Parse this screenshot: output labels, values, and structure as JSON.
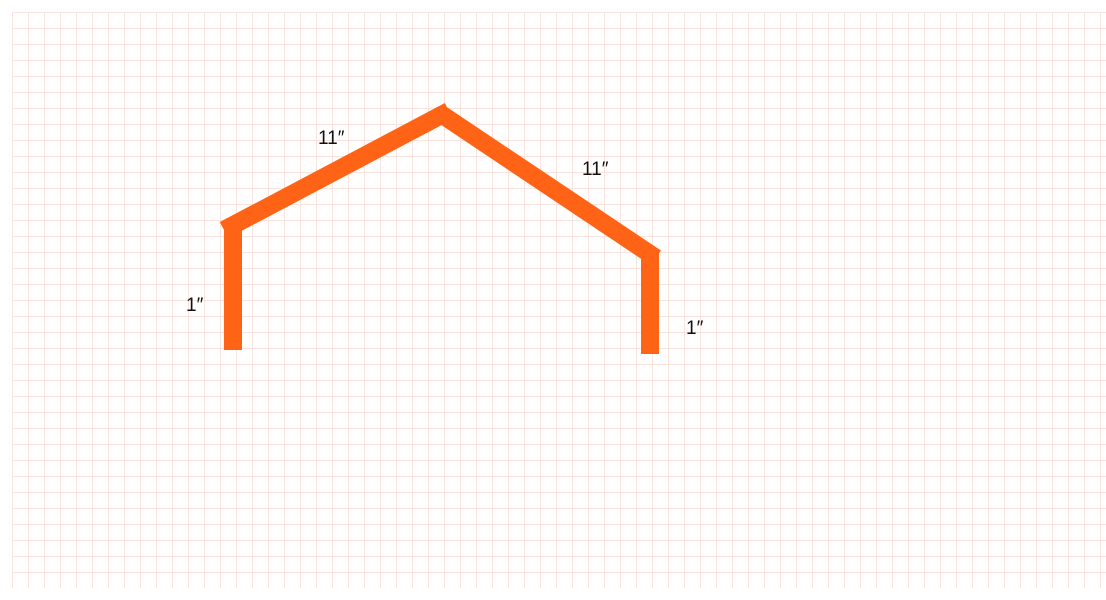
{
  "diagram": {
    "stroke_color": "#ff6416",
    "grid_color": "#f9e3dc",
    "segments": [
      {
        "id": "left-post",
        "label": "1″"
      },
      {
        "id": "left-rafter",
        "label": "11″"
      },
      {
        "id": "right-rafter",
        "label": "11″"
      },
      {
        "id": "right-post",
        "label": "1″"
      }
    ]
  }
}
